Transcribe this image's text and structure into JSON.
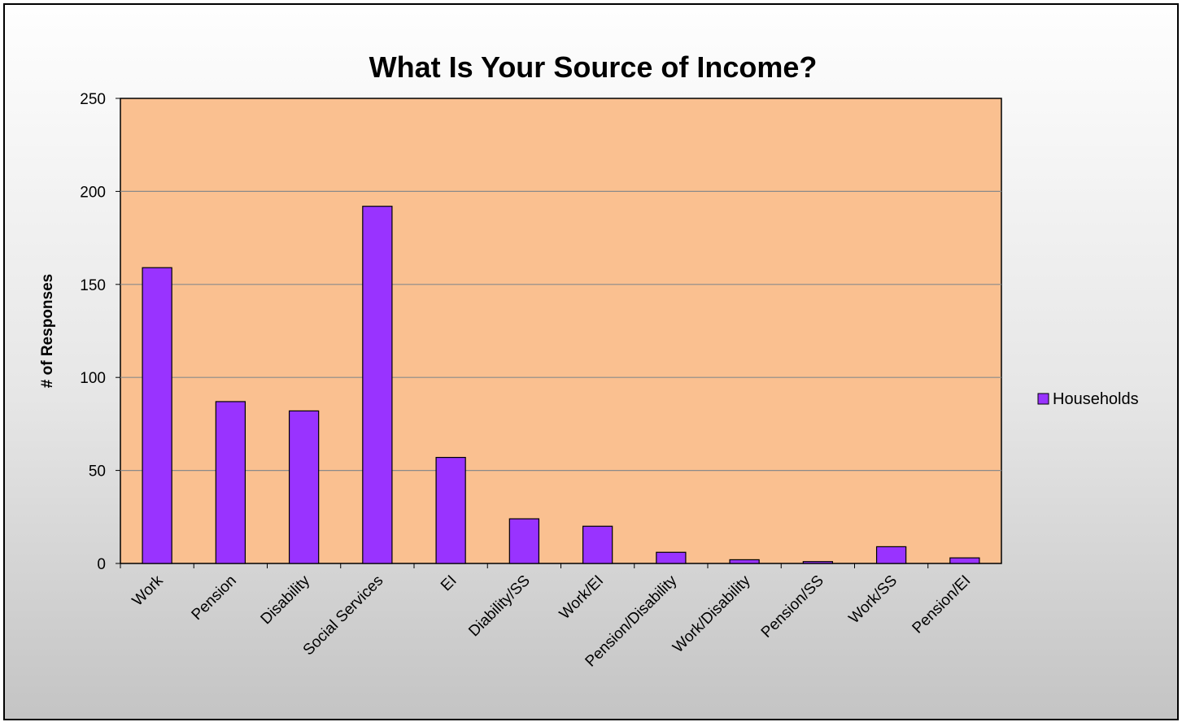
{
  "chart_data": {
    "type": "bar",
    "title": "What Is Your Source of Income?",
    "xlabel": "",
    "ylabel": "# of Responses",
    "ylim": [
      0,
      250
    ],
    "yticks": [
      0,
      50,
      100,
      150,
      200,
      250
    ],
    "grid": true,
    "legend": "right",
    "categories": [
      "Work",
      "Pension",
      "Disability",
      "Social Services",
      "EI",
      "Diability/SS",
      "Work/EI",
      "Pension/Disability",
      "Work/Disability",
      "Pension/SS",
      "Work/SS",
      "Pension/EI"
    ],
    "series": [
      {
        "name": "Households",
        "color": "#9933ff",
        "values": [
          159,
          87,
          82,
          192,
          57,
          24,
          20,
          6,
          2,
          1,
          9,
          3
        ]
      }
    ],
    "plot_background": "#fac090"
  }
}
